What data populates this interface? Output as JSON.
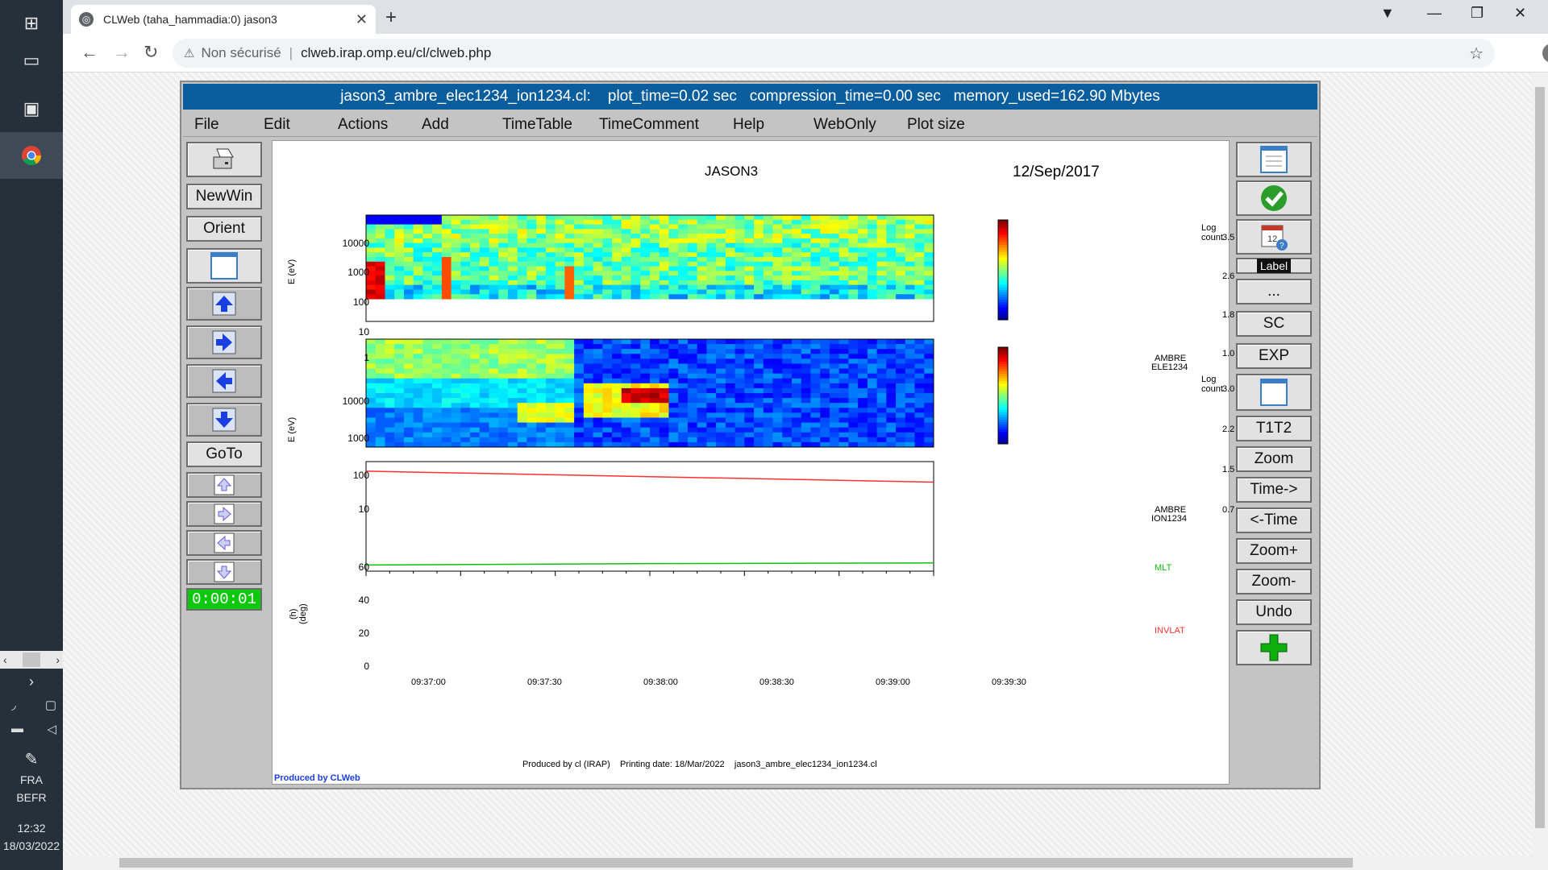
{
  "taskbar": {
    "language_1": "FRA",
    "language_2": "BEFR",
    "time": "12:32",
    "date": "18/03/2022"
  },
  "browser": {
    "tab_title": "CLWeb (taha_hammadia:0) jason3",
    "security_label": "Non sécurisé",
    "url": "clweb.irap.omp.eu/cl/clweb.php"
  },
  "app": {
    "title": "jason3_ambre_elec1234_ion1234.cl:    plot_time=0.02 sec   compression_time=0.00 sec   memory_used=162.90 Mbytes",
    "menu": [
      "File",
      "Edit",
      "Actions",
      "Add",
      "TimeTable",
      "TimeComment",
      "Help",
      "WebOnly",
      "Plot size"
    ],
    "left_buttons": {
      "newwin": "NewWin",
      "orient": "Orient",
      "goto": "GoTo",
      "timer": "0:00:01"
    },
    "right_buttons": {
      "label": "Label",
      "dots": "...",
      "sc": "SC",
      "exp": "EXP",
      "t1t2": "T1T2",
      "zoom": "Zoom",
      "time_fwd": "Time->",
      "time_back": "<-Time",
      "zoom_plus": "Zoom+",
      "zoom_minus": "Zoom-",
      "undo": "Undo"
    }
  },
  "chart_data": [
    {
      "type": "heatmap",
      "title": "JASON3",
      "date": "12/Sep/2017",
      "ylabel": "E (eV)",
      "y_ticks": [
        "10000",
        "1000",
        "100",
        "10",
        "1"
      ],
      "colorbar_title": "Log count",
      "colorbar_ticks": [
        "3.5",
        "2.6",
        "1.8",
        "1.0"
      ],
      "label_1": "AMBRE",
      "label_2": "ELE1234"
    },
    {
      "type": "heatmap",
      "ylabel": "E (eV)",
      "y_ticks": [
        "10000",
        "1000",
        "100",
        "10"
      ],
      "colorbar_title": "Log count",
      "colorbar_ticks": [
        "3.0",
        "2.2",
        "1.5",
        "0.7"
      ],
      "label_1": "AMBRE",
      "label_2": "ION1234"
    },
    {
      "type": "line",
      "ylabel_1": "(h)",
      "ylabel_2": "(deg)",
      "y_ticks": [
        "60",
        "40",
        "20",
        "0"
      ],
      "ylim": [
        0,
        80
      ],
      "x_ticks": [
        "09:37:00",
        "09:37:30",
        "09:38:00",
        "09:38:30",
        "09:39:00",
        "09:39:30"
      ],
      "series": [
        {
          "name": "MLT",
          "color": "#10c010",
          "values": [
            4.5,
            5.5,
            6.0
          ]
        },
        {
          "name": "INVLAT",
          "color": "#ff3030",
          "values": [
            73,
            69,
            65
          ]
        }
      ]
    }
  ],
  "footer": {
    "produced": "Produced by cl (IRAP)    Printing date: 18/Mar/2022    jason3_ambre_elec1234_ion1234.cl",
    "credit": "Produced by CLWeb"
  },
  "colors": {
    "title_bar": "#0b5e9e",
    "timer": "#0ec80e"
  }
}
